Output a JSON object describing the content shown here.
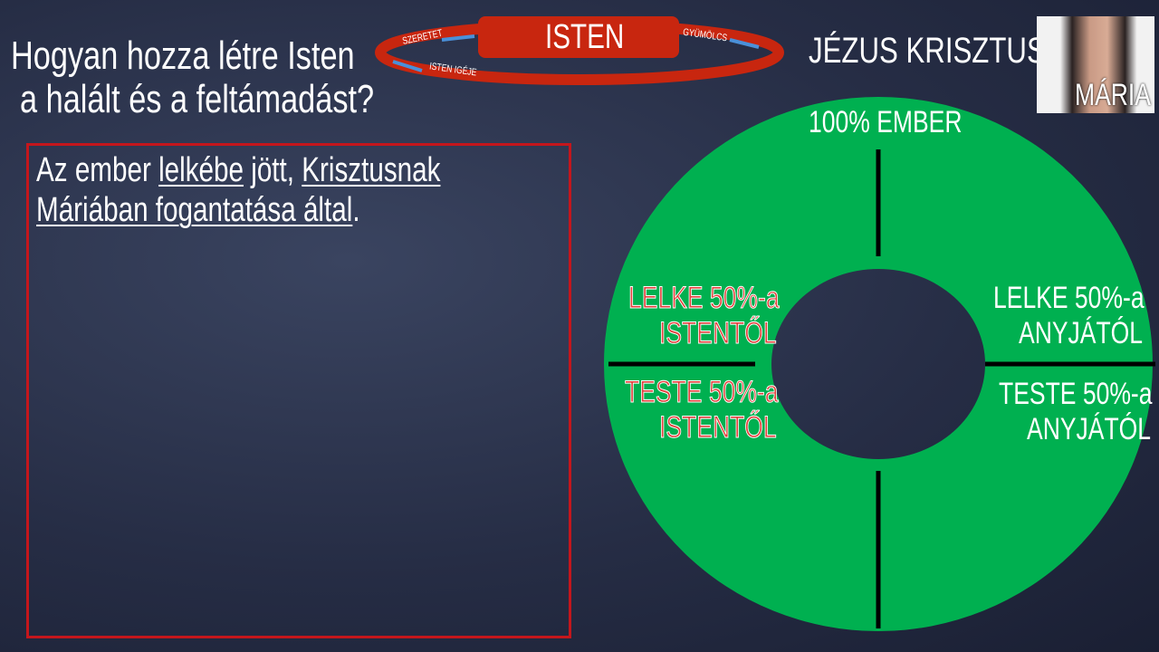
{
  "title": {
    "line1": "Hogyan hozza létre Isten",
    "line2": "a halált és a feltámadást?"
  },
  "cycle": {
    "center": "ISTEN",
    "left_top": "SZERETET",
    "left_bottom": "ISTEN IGÉJE",
    "right": "GYÜMÖLCS"
  },
  "body": {
    "p1": "Az ember ",
    "u1": "lelkébe",
    "p2": " jött, ",
    "u2": "Krisztusnak",
    "u3": "Máriában fogantatása által",
    "p3": "."
  },
  "diagram": {
    "heading": "JÉZUS KRISZTUS",
    "top": "100% EMBER",
    "left_top": [
      "LELKE 50%-a",
      "ISTENTŐL"
    ],
    "left_bottom": [
      "TESTE 50%-a",
      "ISTENTŐL"
    ],
    "right_top": [
      "LELKE 50%-a",
      "ANYJÁTÓL"
    ],
    "right_bottom": [
      "TESTE 50%-a",
      "ANYJÁTÓL"
    ],
    "ring_color": "#00b050"
  },
  "photo": {
    "caption": "MÁRIA"
  }
}
